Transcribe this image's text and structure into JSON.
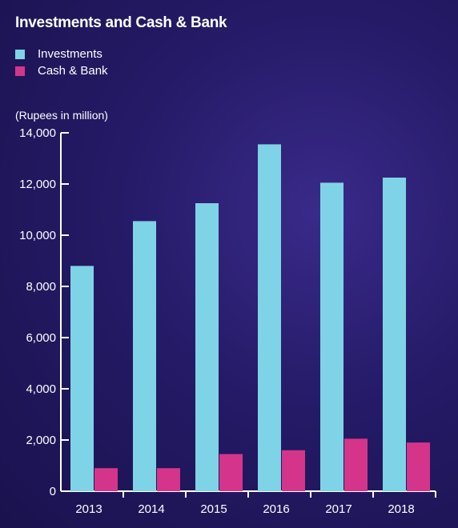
{
  "chart_data": {
    "type": "bar",
    "title": "Investments and Cash & Bank",
    "unit_label": "(Rupees in million)",
    "categories": [
      "2013",
      "2014",
      "2015",
      "2016",
      "2017",
      "2018"
    ],
    "series": [
      {
        "name": "Investments",
        "color": "#7fd3e6",
        "values": [
          8800,
          10550,
          11250,
          13550,
          12050,
          12250
        ]
      },
      {
        "name": "Cash & Bank",
        "color": "#d4358a",
        "values": [
          900,
          900,
          1450,
          1600,
          2050,
          1900
        ]
      }
    ],
    "ylim": [
      0,
      14000
    ],
    "yticks": [
      0,
      2000,
      4000,
      6000,
      8000,
      10000,
      12000,
      14000
    ],
    "ytick_labels": [
      "0",
      "2,000",
      "4,000",
      "6,000",
      "8,000",
      "10,000",
      "12,000",
      "14,000"
    ],
    "legend_position": "top-left",
    "grid": false
  }
}
